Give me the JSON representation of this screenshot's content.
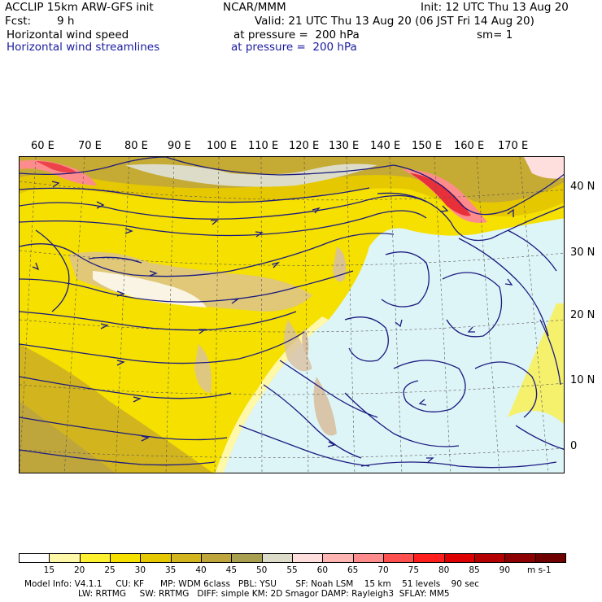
{
  "header": {
    "model": "ACCLIP 15km ARW-GFS init",
    "org": "NCAR/MMM",
    "init": "Init: 12 UTC Thu 13 Aug 20",
    "fcst_label": "Fcst:",
    "fcst_value": "9 h",
    "valid": "Valid: 21 UTC Thu 13 Aug 20 (06 JST Fri 14 Aug 20)",
    "field1": "Horizontal wind speed",
    "field1_level": "at pressure =  200 hPa",
    "smooth": "sm= 1",
    "field2": "Horizontal wind streamlines",
    "field2_level": "at pressure =  200 hPa"
  },
  "map": {
    "lon_labels": [
      "60 E",
      "70 E",
      "80 E",
      "90 E",
      "100 E",
      "110 E",
      "120 E",
      "130 E",
      "140 E",
      "150 E",
      "160 E",
      "170 E"
    ],
    "lat_labels": [
      "40 N",
      "30 N",
      "20 N",
      "10 N",
      "0"
    ],
    "colors": {
      "ocean_calm": "#def5f7",
      "land": "#d8c0a0",
      "jet_core": "#e8303a",
      "streamline": "#1a1a80"
    }
  },
  "colorbar": {
    "ticks": [
      "15",
      "20",
      "25",
      "30",
      "35",
      "40",
      "45",
      "50",
      "55",
      "60",
      "65",
      "70",
      "75",
      "80",
      "85",
      "90"
    ],
    "units": "m s-1",
    "colors": [
      "#ffffff",
      "#fff8a8",
      "#fff030",
      "#f5e000",
      "#e6c800",
      "#d2b41e",
      "#bea53c",
      "#a8a050",
      "#dcdcc8",
      "#ffdede",
      "#ffb4b4",
      "#ff8c8c",
      "#ff5050",
      "#ff1e1e",
      "#dc0000",
      "#b40000",
      "#8c0000",
      "#6e0000"
    ]
  },
  "footer": {
    "line1": "Model Info: V4.1.1     CU: KF      MP: WDM 6class   PBL: YSU       SF: Noah LSM    15 km    51 levels    90 sec",
    "line2": "LW: RRTMG     SW: RRTMG   DIFF: simple KM: 2D Smagor DAMP: Rayleigh3  SFLAY: MM5"
  }
}
